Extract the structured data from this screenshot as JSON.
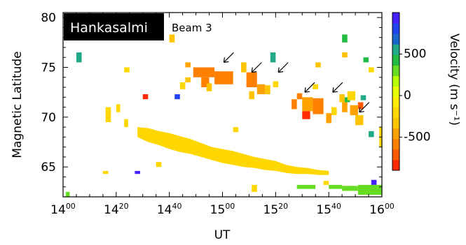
{
  "chart_data": {
    "type": "heatmap",
    "title_site": "Hankasalmi",
    "title_beam": "Beam 3",
    "xlabel": "UT",
    "ylabel": "Magnetic Latitude",
    "colorbar_label": "Velocity  (m s⁻¹)",
    "xlim_minutes": [
      840,
      960
    ],
    "ylim": [
      62,
      80.5
    ],
    "x_ticks": [
      {
        "minutes": 840,
        "hour": "14",
        "min": "00"
      },
      {
        "minutes": 860,
        "hour": "14",
        "min": "20"
      },
      {
        "minutes": 880,
        "hour": "14",
        "min": "40"
      },
      {
        "minutes": 900,
        "hour": "15",
        "min": "00"
      },
      {
        "minutes": 920,
        "hour": "15",
        "min": "20"
      },
      {
        "minutes": 940,
        "hour": "15",
        "min": "40"
      },
      {
        "minutes": 960,
        "hour": "16",
        "min": "00"
      }
    ],
    "y_ticks": [
      65,
      70,
      75,
      80
    ],
    "colorbar": {
      "range": [
        -900,
        1000
      ],
      "ticks": [
        500,
        0,
        -500
      ],
      "colors": [
        "#ff2a00",
        "#ff5a00",
        "#ff7f00",
        "#ffa200",
        "#ffc400",
        "#ffd700",
        "#ffee00",
        "#e8ff00",
        "#b8ff00",
        "#66dd22",
        "#22bb44",
        "#22aa88",
        "#1a66cc",
        "#2244ee",
        "#4422ff"
      ]
    },
    "arrows": [
      {
        "ut": 900.5,
        "mlat": 75.5
      },
      {
        "ut": 911,
        "mlat": 74.5
      },
      {
        "ut": 921,
        "mlat": 74.5
      },
      {
        "ut": 931,
        "mlat": 72.5
      },
      {
        "ut": 941.5,
        "mlat": 72.5
      },
      {
        "ut": 951.5,
        "mlat": 70.5
      }
    ],
    "cells": [
      {
        "ut_start": 841,
        "ut_end": 842.5,
        "mlat_lo": 62,
        "mlat_hi": 62.5,
        "v": 250
      },
      {
        "ut_start": 845,
        "ut_end": 847,
        "mlat_lo": 75.5,
        "mlat_hi": 76.5,
        "v": 600
      },
      {
        "ut_start": 855,
        "ut_end": 857,
        "mlat_lo": 64.3,
        "mlat_hi": 64.6,
        "v": -150
      },
      {
        "ut_start": 856,
        "ut_end": 858,
        "mlat_lo": 69.5,
        "mlat_hi": 71,
        "v": -200
      },
      {
        "ut_start": 860,
        "ut_end": 861.5,
        "mlat_lo": 70.5,
        "mlat_hi": 71.3,
        "v": -200
      },
      {
        "ut_start": 863,
        "ut_end": 864.5,
        "mlat_lo": 69,
        "mlat_hi": 69.8,
        "v": -200
      },
      {
        "ut_start": 863,
        "ut_end": 865,
        "mlat_lo": 74.5,
        "mlat_hi": 75,
        "v": -150
      },
      {
        "ut_start": 867,
        "ut_end": 869,
        "mlat_lo": 64.3,
        "mlat_hi": 64.6,
        "v": 950
      },
      {
        "ut_start": 870,
        "ut_end": 872,
        "mlat_lo": 71.8,
        "mlat_hi": 72.3,
        "v": -800
      },
      {
        "ut_start": 872,
        "ut_end": 874,
        "mlat_lo": 67.8,
        "mlat_hi": 68.8,
        "v": -200
      },
      {
        "ut_start": 875,
        "ut_end": 877,
        "mlat_lo": 65,
        "mlat_hi": 65.5,
        "v": -150
      },
      {
        "ut_start": 880,
        "ut_end": 882,
        "mlat_lo": 77.5,
        "mlat_hi": 78.3,
        "v": -300
      },
      {
        "ut_start": 882,
        "ut_end": 884,
        "mlat_lo": 71.8,
        "mlat_hi": 72.3,
        "v": 750
      },
      {
        "ut_start": 884,
        "ut_end": 886,
        "mlat_lo": 72.8,
        "mlat_hi": 73.5,
        "v": -200
      },
      {
        "ut_start": 886,
        "ut_end": 888,
        "mlat_lo": 75,
        "mlat_hi": 75.5,
        "v": -500
      },
      {
        "ut_start": 886,
        "ut_end": 888,
        "mlat_lo": 73.5,
        "mlat_hi": 74,
        "v": -300
      },
      {
        "ut_start": 889,
        "ut_end": 897,
        "mlat_lo": 74,
        "mlat_hi": 75,
        "v": -550
      },
      {
        "ut_start": 892,
        "ut_end": 895,
        "mlat_lo": 73,
        "mlat_hi": 74,
        "v": -600
      },
      {
        "ut_start": 894,
        "ut_end": 896,
        "mlat_lo": 72.6,
        "mlat_hi": 73.4,
        "v": -350
      },
      {
        "ut_start": 897,
        "ut_end": 904,
        "mlat_lo": 73.3,
        "mlat_hi": 74.6,
        "v": -550
      },
      {
        "ut_start": 904,
        "ut_end": 906,
        "mlat_lo": 68.5,
        "mlat_hi": 69,
        "v": -150
      },
      {
        "ut_start": 907,
        "ut_end": 909,
        "mlat_lo": 74.5,
        "mlat_hi": 75.5,
        "v": -350
      },
      {
        "ut_start": 909,
        "ut_end": 913,
        "mlat_lo": 73,
        "mlat_hi": 74.5,
        "v": -550
      },
      {
        "ut_start": 910,
        "ut_end": 912,
        "mlat_lo": 71.8,
        "mlat_hi": 72.6,
        "v": -350
      },
      {
        "ut_start": 911,
        "ut_end": 913,
        "mlat_lo": 62.5,
        "mlat_hi": 63.2,
        "v": -150
      },
      {
        "ut_start": 913,
        "ut_end": 916,
        "mlat_lo": 72.3,
        "mlat_hi": 73.3,
        "v": -500
      },
      {
        "ut_start": 916,
        "ut_end": 918,
        "mlat_lo": 72.3,
        "mlat_hi": 73.2,
        "v": -300
      },
      {
        "ut_start": 918,
        "ut_end": 920,
        "mlat_lo": 75.5,
        "mlat_hi": 76.5,
        "v": 550
      },
      {
        "ut_start": 919,
        "ut_end": 921,
        "mlat_lo": 73,
        "mlat_hi": 73.6,
        "v": -200
      },
      {
        "ut_start": 926,
        "ut_end": 928,
        "mlat_lo": 70.8,
        "mlat_hi": 71.8,
        "v": -600
      },
      {
        "ut_start": 928,
        "ut_end": 930,
        "mlat_lo": 71.8,
        "mlat_hi": 72.4,
        "v": -550
      },
      {
        "ut_start": 930,
        "ut_end": 934,
        "mlat_lo": 70.6,
        "mlat_hi": 72.0,
        "v": -500
      },
      {
        "ut_start": 930,
        "ut_end": 933,
        "mlat_lo": 69.8,
        "mlat_hi": 70.6,
        "v": -800
      },
      {
        "ut_start": 934,
        "ut_end": 938,
        "mlat_lo": 70.3,
        "mlat_hi": 71.9,
        "v": -550
      },
      {
        "ut_start": 934,
        "ut_end": 936,
        "mlat_lo": 72.8,
        "mlat_hi": 73.3,
        "v": -200
      },
      {
        "ut_start": 935,
        "ut_end": 937,
        "mlat_lo": 75,
        "mlat_hi": 75.5,
        "v": -300
      },
      {
        "ut_start": 939,
        "ut_end": 941,
        "mlat_lo": 69.4,
        "mlat_hi": 70.4,
        "v": -500
      },
      {
        "ut_start": 941,
        "ut_end": 943,
        "mlat_lo": 70.2,
        "mlat_hi": 71,
        "v": -200
      },
      {
        "ut_start": 944,
        "ut_end": 946,
        "mlat_lo": 71.5,
        "mlat_hi": 72.3,
        "v": -300
      },
      {
        "ut_start": 945,
        "ut_end": 947,
        "mlat_lo": 70.5,
        "mlat_hi": 71.5,
        "v": -450
      },
      {
        "ut_start": 946,
        "ut_end": 948,
        "mlat_lo": 71.5,
        "mlat_hi": 72,
        "v": 450
      },
      {
        "ut_start": 945,
        "ut_end": 947,
        "mlat_lo": 77.5,
        "mlat_hi": 78.3,
        "v": 400
      },
      {
        "ut_start": 945,
        "ut_end": 947,
        "mlat_lo": 76,
        "mlat_hi": 76.5,
        "v": -300
      },
      {
        "ut_start": 947,
        "ut_end": 950,
        "mlat_lo": 71.7,
        "mlat_hi": 72.6,
        "v": -200
      },
      {
        "ut_start": 948,
        "ut_end": 951,
        "mlat_lo": 70.2,
        "mlat_hi": 71.2,
        "v": -450
      },
      {
        "ut_start": 950,
        "ut_end": 953,
        "mlat_lo": 69.2,
        "mlat_hi": 70.2,
        "v": -350
      },
      {
        "ut_start": 951,
        "ut_end": 953,
        "mlat_lo": 70.8,
        "mlat_hi": 71.5,
        "v": -650
      },
      {
        "ut_start": 952,
        "ut_end": 954,
        "mlat_lo": 71.7,
        "mlat_hi": 72.2,
        "v": 500
      },
      {
        "ut_start": 953,
        "ut_end": 955,
        "mlat_lo": 75.5,
        "mlat_hi": 76,
        "v": 450
      },
      {
        "ut_start": 955,
        "ut_end": 957,
        "mlat_lo": 74.5,
        "mlat_hi": 75,
        "v": -150
      },
      {
        "ut_start": 955,
        "ut_end": 957,
        "mlat_lo": 68,
        "mlat_hi": 68.6,
        "v": 600
      },
      {
        "ut_start": 956,
        "ut_end": 958,
        "mlat_lo": 63.2,
        "mlat_hi": 63.7,
        "v": 900
      },
      {
        "ut_start": 959,
        "ut_end": 960,
        "mlat_lo": 67,
        "mlat_hi": 69,
        "v": -200
      },
      {
        "ut_start": 951,
        "ut_end": 960,
        "mlat_lo": 62.2,
        "mlat_hi": 63.2,
        "v": 250
      },
      {
        "ut_start": 945,
        "ut_end": 951,
        "mlat_lo": 62.6,
        "mlat_hi": 63.1,
        "v": 250
      },
      {
        "ut_start": 940,
        "ut_end": 945,
        "mlat_lo": 62.8,
        "mlat_hi": 63.2,
        "v": 250
      },
      {
        "ut_start": 928,
        "ut_end": 935,
        "mlat_lo": 62.8,
        "mlat_hi": 63.2,
        "v": 250
      },
      {
        "ut_start": 938,
        "ut_end": 940,
        "mlat_lo": 63.2,
        "mlat_hi": 63.6,
        "v": -150
      }
    ],
    "band": {
      "v": -200,
      "points": [
        [
          868,
          68.0,
          69.0
        ],
        [
          872,
          67.5,
          68.9
        ],
        [
          876,
          67.2,
          68.6
        ],
        [
          880,
          66.8,
          68.4
        ],
        [
          884,
          66.5,
          68.1
        ],
        [
          888,
          66.3,
          67.8
        ],
        [
          892,
          66.0,
          67.4
        ],
        [
          896,
          65.7,
          67.0
        ],
        [
          900,
          65.4,
          66.8
        ],
        [
          904,
          65.2,
          66.6
        ],
        [
          908,
          65.0,
          66.3
        ],
        [
          912,
          64.9,
          66.0
        ],
        [
          916,
          64.7,
          65.8
        ],
        [
          920,
          64.6,
          65.6
        ],
        [
          924,
          64.4,
          65.2
        ],
        [
          928,
          64.3,
          65.0
        ],
        [
          932,
          64.3,
          64.9
        ],
        [
          936,
          64.2,
          64.7
        ],
        [
          940,
          64.2,
          64.6
        ]
      ]
    }
  }
}
